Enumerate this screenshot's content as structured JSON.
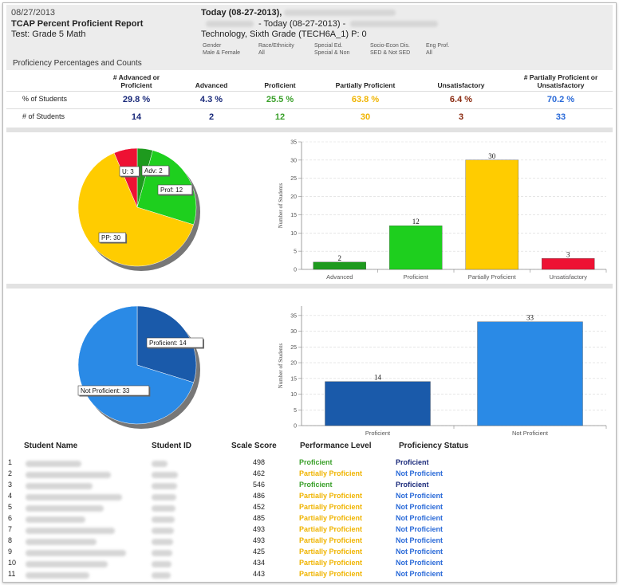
{
  "header": {
    "date": "08/27/2013",
    "title": "TCAP Percent Proficient Report",
    "test": "Test: Grade 5 Math",
    "today_label": "Today (08-27-2013), ",
    "today_range": "- Today (08-27-2013) -",
    "course": "Technology, Sixth Grade (TECH6A_1) P: 0",
    "filters": [
      {
        "label": "Gender",
        "value": "Male & Female"
      },
      {
        "label": "Race/Ethnicity",
        "value": "All"
      },
      {
        "label": "Special Ed.",
        "value": "Special & Non"
      },
      {
        "label": "Socio-Econ Dis.",
        "value": "SED & Not SED"
      },
      {
        "label": "Eng Prof.",
        "value": "All"
      }
    ]
  },
  "section_title": "Proficiency Percentages and Counts",
  "summary": {
    "columns": [
      "# Advanced or Proficient",
      "Advanced",
      "Proficient",
      "Partially Proficient",
      "Unsatisfactory",
      "# Partially Proficient or Unsatisfactory"
    ],
    "pct_label": "% of Students",
    "count_label": "# of Students",
    "pct": [
      "29.8 %",
      "4.3 %",
      "25.5 %",
      "63.8 %",
      "6.4 %",
      "70.2 %"
    ],
    "counts": [
      "14",
      "2",
      "12",
      "30",
      "3",
      "33"
    ]
  },
  "colors": {
    "navy": "#1a2a7a",
    "green": "#3aa02a",
    "gold": "#f0b400",
    "brown": "#8a2a10",
    "blue": "#2a6ad8",
    "adv": "#1e9a1e",
    "prof": "#1ecf1e",
    "pp": "#ffcc00",
    "unsat": "#ee1133",
    "profDark": "#1a5aaa",
    "notProf": "#2a8ae6"
  },
  "chart_data": [
    {
      "type": "pie",
      "labels": [
        "Advanced",
        "Proficient",
        "Partially Proficient",
        "Unsatisfactory"
      ],
      "values": [
        2,
        12,
        30,
        3
      ],
      "tooltips": [
        "Adv: 2",
        "Prof: 12",
        "PP: 30",
        "U: 3"
      ]
    },
    {
      "type": "bar",
      "categories": [
        "Advanced",
        "Proficient",
        "Partially Proficient",
        "Unsatisfactory"
      ],
      "values": [
        2,
        12,
        30,
        3
      ],
      "ylabel": "Number of Students",
      "ylim": [
        0,
        35
      ],
      "yticks": [
        0,
        5,
        10,
        15,
        20,
        25,
        30,
        35
      ]
    },
    {
      "type": "pie",
      "labels": [
        "Proficient",
        "Not Proficient"
      ],
      "values": [
        14,
        33
      ],
      "tooltips": [
        "Proficient: 14",
        "Not Proficient: 33"
      ]
    },
    {
      "type": "bar",
      "categories": [
        "Proficient",
        "Not Proficient"
      ],
      "values": [
        14,
        33
      ],
      "ylabel": "Number of Students",
      "ylim": [
        0,
        38
      ],
      "yticks": [
        0,
        5,
        10,
        15,
        20,
        25,
        30,
        35
      ]
    }
  ],
  "students": {
    "headers": [
      "Student Name",
      "Student ID",
      "Scale Score",
      "Performance Level",
      "Proficiency Status"
    ],
    "rows": [
      {
        "n": "1",
        "score": "498",
        "level": "Proficient",
        "status": "Proficient"
      },
      {
        "n": "2",
        "score": "462",
        "level": "Partially Proficient",
        "status": "Not Proficient"
      },
      {
        "n": "3",
        "score": "546",
        "level": "Proficient",
        "status": "Proficient"
      },
      {
        "n": "4",
        "score": "486",
        "level": "Partially Proficient",
        "status": "Not Proficient"
      },
      {
        "n": "5",
        "score": "452",
        "level": "Partially Proficient",
        "status": "Not Proficient"
      },
      {
        "n": "6",
        "score": "485",
        "level": "Partially Proficient",
        "status": "Not Proficient"
      },
      {
        "n": "7",
        "score": "493",
        "level": "Partially Proficient",
        "status": "Not Proficient"
      },
      {
        "n": "8",
        "score": "493",
        "level": "Partially Proficient",
        "status": "Not Proficient"
      },
      {
        "n": "9",
        "score": "425",
        "level": "Partially Proficient",
        "status": "Not Proficient"
      },
      {
        "n": "10",
        "score": "434",
        "level": "Partially Proficient",
        "status": "Not Proficient"
      },
      {
        "n": "11",
        "score": "443",
        "level": "Partially Proficient",
        "status": "Not Proficient"
      }
    ]
  }
}
